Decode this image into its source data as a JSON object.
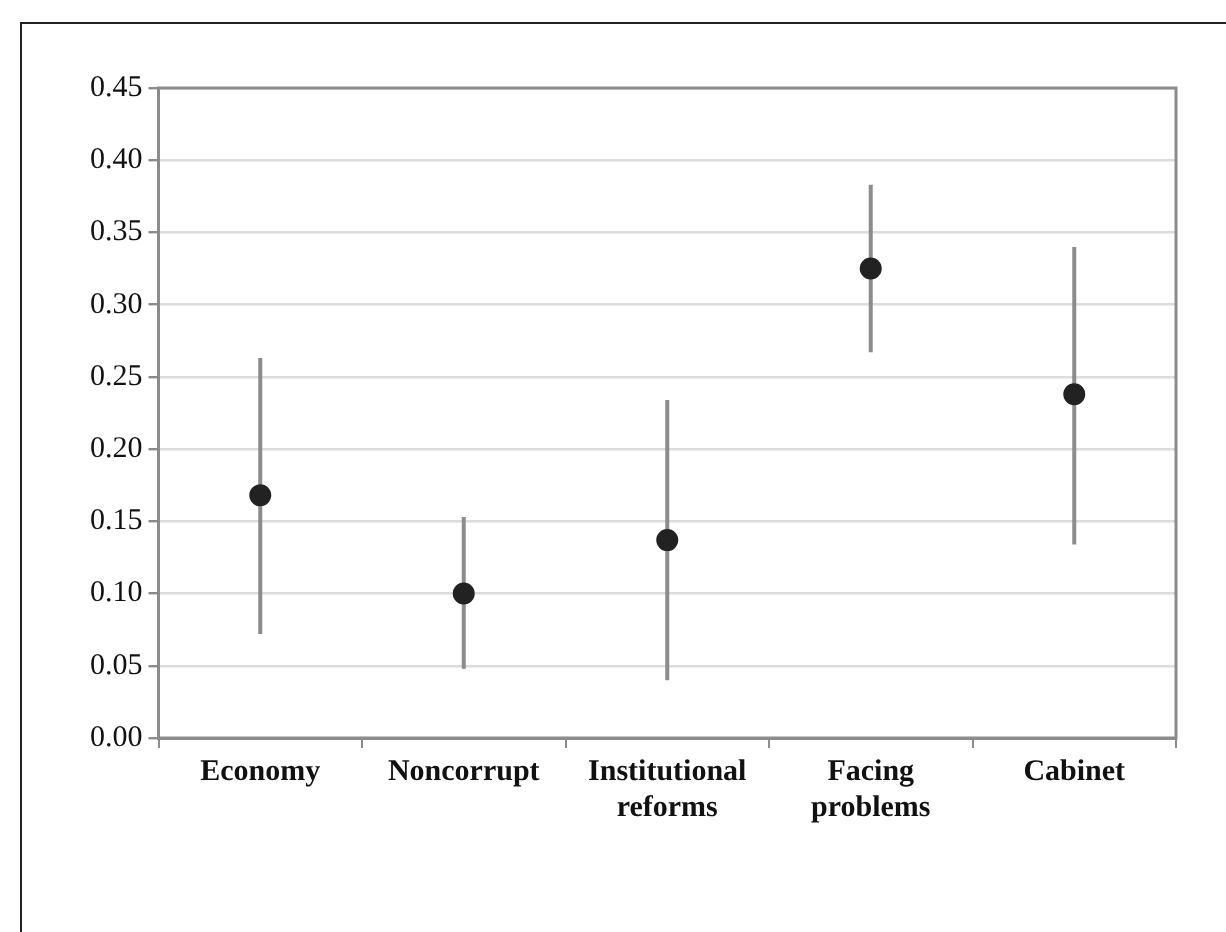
{
  "chart_data": {
    "type": "scatter",
    "categories": [
      "Economy",
      "Noncorrupt",
      "Institutional reforms",
      "Facing problems",
      "Cabinet"
    ],
    "values": [
      0.168,
      0.1,
      0.137,
      0.325,
      0.238
    ],
    "errors": [
      [
        0.072,
        0.263
      ],
      [
        0.048,
        0.153
      ],
      [
        0.04,
        0.234
      ],
      [
        0.267,
        0.383
      ],
      [
        0.134,
        0.34
      ]
    ],
    "color": "#222222",
    "ylim": [
      0,
      0.45
    ],
    "yticks": [
      {
        "value": 0,
        "label": "0.00"
      },
      {
        "value": 0.05,
        "label": "0.05"
      },
      {
        "value": 0.1,
        "label": "0.10"
      },
      {
        "value": 0.15,
        "label": "0.15"
      },
      {
        "value": 0.2,
        "label": "0.20"
      },
      {
        "value": 0.25,
        "label": "0.25"
      },
      {
        "value": 0.3,
        "label": "0.30"
      },
      {
        "value": 0.35,
        "label": "0.35"
      },
      {
        "value": 0.4,
        "label": "0.40"
      },
      {
        "value": 0.45,
        "label": "0.45"
      }
    ],
    "grid": "y",
    "marker": "circle",
    "legend": false
  }
}
